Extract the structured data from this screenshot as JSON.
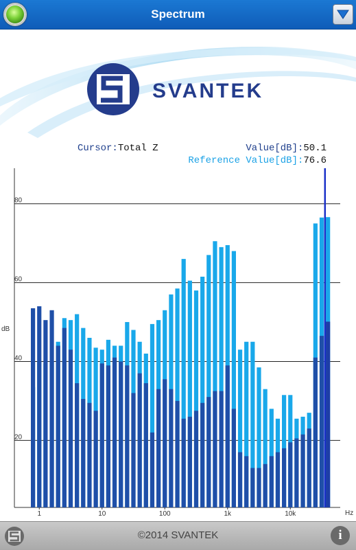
{
  "header": {
    "title": "Spectrum"
  },
  "logo": {
    "text": "SVANTEK"
  },
  "readout": {
    "cursor_label": "Cursor:",
    "cursor_value": "Total Z",
    "value_label": "Value[dB]:",
    "value": "50.1",
    "reference_label": "Reference Value[dB]:",
    "reference_value": "76.6"
  },
  "footer": {
    "copyright": "2014 SVANTEK"
  },
  "icons": {
    "status": "status-led-icon",
    "menu": "dropdown-arrow-icon",
    "footer_logo": "svantek-logo-icon",
    "info": "info-icon"
  },
  "colors": {
    "header": "#1470cc",
    "current_bar": "#1f4fa8",
    "reference_bar": "#19a8ea",
    "cursor_bar": "#1a30c8",
    "gridline": "#222222"
  },
  "chart_data": {
    "type": "bar",
    "ylabel": "dB",
    "xlabel": "Hz",
    "y_ticks": [
      20,
      40,
      60,
      80
    ],
    "x_tick_labels": [
      "1",
      "10",
      "100",
      "1k",
      "10k"
    ],
    "x_tick_index": [
      1,
      11,
      21,
      31,
      41
    ],
    "ylim": [
      3,
      89
    ],
    "grid": true,
    "series": [
      {
        "values": [
          53.5,
          54,
          50.5,
          53,
          44,
          48.5,
          43,
          34.5,
          30.5,
          29.5,
          27.5,
          39.5,
          39,
          41,
          40,
          39,
          32,
          37,
          34.5,
          22,
          33,
          35.5,
          33,
          30,
          25.5,
          26,
          27.5,
          29.5,
          31,
          32.5,
          32.5,
          39,
          28,
          17,
          16,
          13,
          13,
          14,
          16,
          17,
          18,
          19.5,
          20.5,
          21.5,
          23,
          41,
          46.5,
          50.1
        ]
      },
      {
        "values": [
          33.5,
          40,
          39.5,
          40,
          45,
          51,
          50.5,
          52,
          48.5,
          46,
          43.5,
          43,
          45.5,
          44,
          44,
          50,
          48,
          45,
          42,
          49.5,
          50.5,
          53,
          57,
          58.5,
          66,
          60.5,
          58,
          61.5,
          67,
          70.5,
          69,
          69.5,
          68,
          43,
          45,
          45,
          38.5,
          33,
          28,
          25.5,
          31.5,
          31.5,
          25.5,
          26,
          27,
          75,
          76.5,
          76.6
        ]
      }
    ],
    "cursor": "Total Z"
  }
}
